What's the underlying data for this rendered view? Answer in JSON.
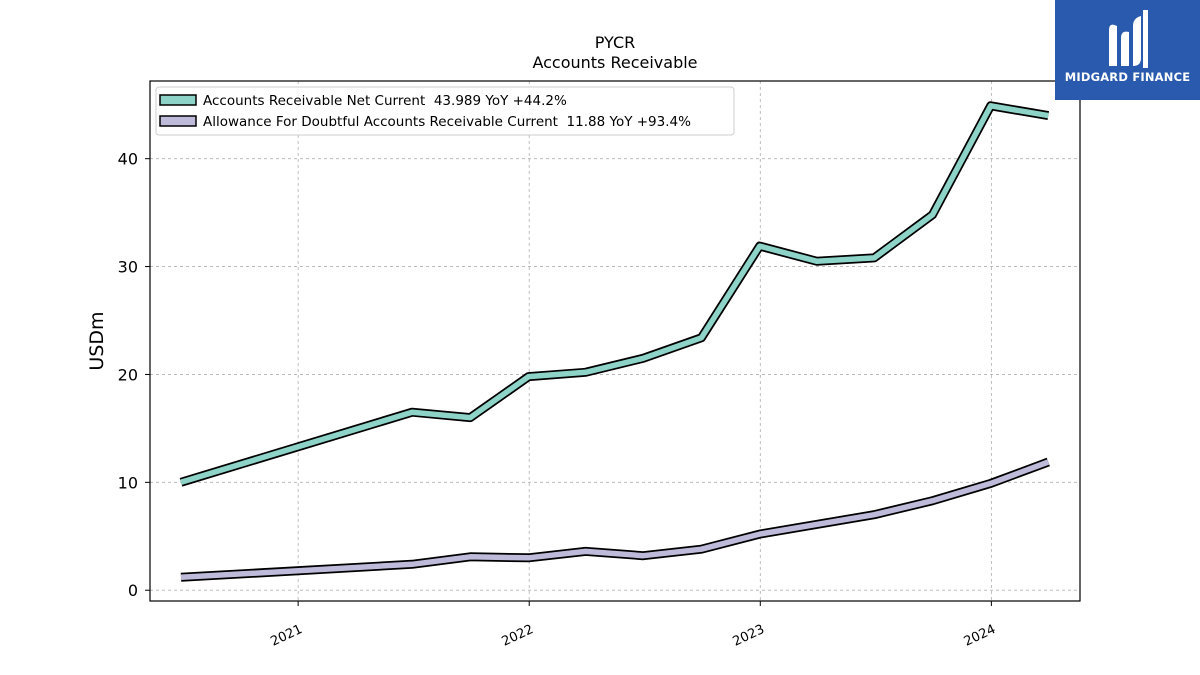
{
  "brand": {
    "name": "MIDGARD FINANCE",
    "background": "#2a5aad"
  },
  "chart_data": {
    "type": "line",
    "title": "PYCR",
    "subtitle": "Accounts Receivable",
    "xlabel": "",
    "ylabel": "USDm",
    "x_tick_labels": [
      "2021",
      "2022",
      "2023",
      "2024"
    ],
    "y_ticks": [
      0,
      10,
      20,
      30,
      40
    ],
    "ylim": [
      -1,
      47.2
    ],
    "xlim": [
      "2020-05-12",
      "2024-05-20"
    ],
    "grid": true,
    "legend_position": "top-left",
    "x": [
      "2020-06-30",
      "2021-06-30",
      "2021-09-30",
      "2021-12-31",
      "2022-03-31",
      "2022-06-30",
      "2022-09-30",
      "2022-12-31",
      "2023-03-31",
      "2023-06-30",
      "2023-09-30",
      "2023-12-31",
      "2024-03-31"
    ],
    "series": [
      {
        "name": "Accounts Receivable Net Current  43.989 YoY +44.2%",
        "color": "#8dd3c7",
        "values": [
          10.0,
          16.5,
          16.0,
          19.8,
          20.2,
          21.5,
          23.4,
          31.9,
          30.5,
          30.8,
          34.8,
          44.9,
          43.989
        ]
      },
      {
        "name": "Allowance For Doubtful Accounts Receivable Current  11.88 YoY +93.4%",
        "color": "#bebada",
        "values": [
          1.2,
          2.4,
          3.1,
          3.0,
          3.6,
          3.2,
          3.8,
          5.2,
          6.1,
          7.0,
          8.3,
          9.9,
          11.88
        ]
      }
    ]
  }
}
